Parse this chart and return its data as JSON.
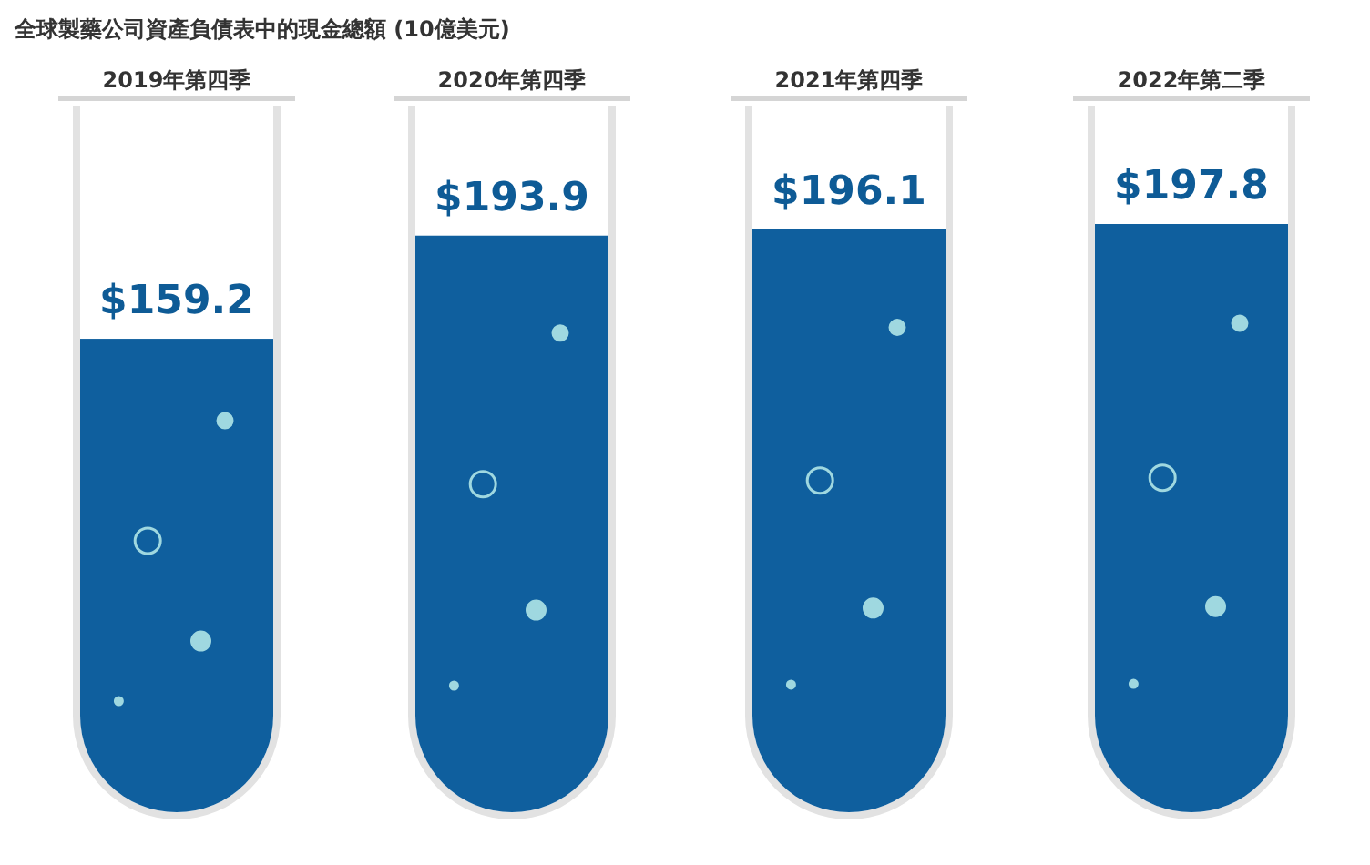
{
  "chart_data": {
    "type": "bar",
    "title": "全球製藥公司資產負債表中的現金總額 (10億美元)",
    "categories": [
      "2019年第四季",
      "2020年第四季",
      "2021年第四季",
      "2022年第二季"
    ],
    "values": [
      159.2,
      193.9,
      196.1,
      197.8
    ],
    "value_labels": [
      "$159.2",
      "$193.9",
      "$196.1",
      "$197.8"
    ],
    "color": "#0f5f9e"
  }
}
